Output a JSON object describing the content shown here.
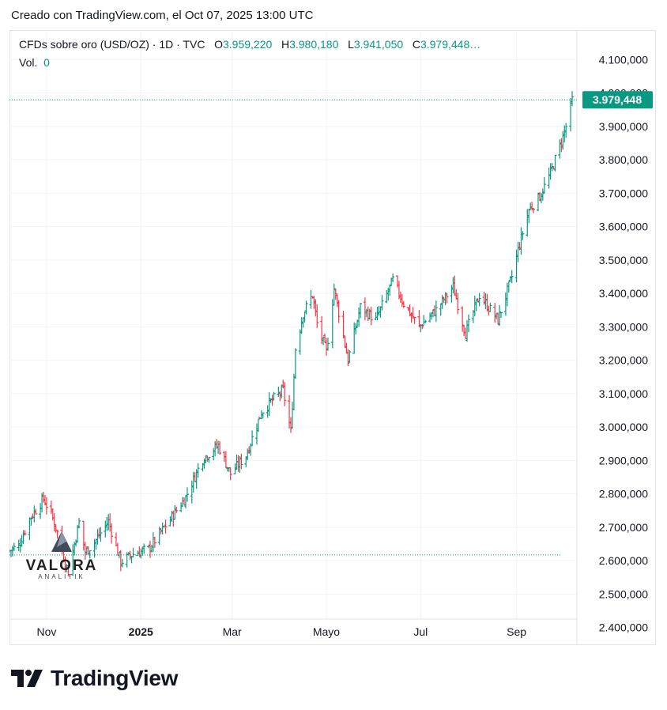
{
  "header": {
    "created_text": "Creado con TradingView.com, el Oct 07, 2025 13:00 UTC"
  },
  "legend": {
    "symbol": "CFDs sobre oro (USD/OZ) · 1D · TVC",
    "o_label": "O",
    "o_value": "3.959,220",
    "h_label": "H",
    "h_value": "3.980,180",
    "l_label": "L",
    "l_value": "3.941,050",
    "c_label": "C",
    "c_value": "3.979,448…",
    "vol_label": "Vol.",
    "vol_value": "0"
  },
  "watermark": {
    "name": "VALORA",
    "sub": "ANALITIK"
  },
  "footer": {
    "brand": "TradingView"
  },
  "colors": {
    "up": "#089981",
    "down": "#f23645",
    "grid": "#f0f3fa",
    "badge": "#089981",
    "text": "#131722"
  },
  "chart_data": {
    "type": "ohlc",
    "y_axis": {
      "min": 2400,
      "max": 4100,
      "ticks": [
        2400,
        2500,
        2600,
        2700,
        2800,
        2900,
        3000,
        3100,
        3200,
        3300,
        3400,
        3500,
        3600,
        3700,
        3800,
        3900,
        4000,
        4100
      ],
      "tick_labels": [
        "2.400,000",
        "2.500,000",
        "2.600,000",
        "2.700,000",
        "2.800,000",
        "2.900,000",
        "3.000,000",
        "3.100,000",
        "3.200,000",
        "3.300,000",
        "3.400,000",
        "3.500,000",
        "3.600,000",
        "3.700,000",
        "3.800,000",
        "3.900,000",
        "4.000,000",
        "4.100,000"
      ]
    },
    "x_axis": {
      "labels": [
        "Nov",
        "2025",
        "Mar",
        "Mayo",
        "Jul",
        "Sep"
      ],
      "label_dates": [
        "2024-11-01",
        "2025-01-01",
        "2025-03-01",
        "2025-05-01",
        "2025-07-01",
        "2025-09-01"
      ]
    },
    "last_price": 3979.448,
    "last_price_label": "3.979,448",
    "reference_line": 2617,
    "grid": true,
    "close_path": [
      [
        "2024-10-08",
        2630
      ],
      [
        "2024-10-14",
        2645
      ],
      [
        "2024-10-21",
        2725
      ],
      [
        "2024-10-30",
        2785
      ],
      [
        "2024-11-04",
        2740
      ],
      [
        "2024-11-08",
        2685
      ],
      [
        "2024-11-13",
        2595
      ],
      [
        "2024-11-15",
        2565
      ],
      [
        "2024-11-22",
        2715
      ],
      [
        "2024-11-26",
        2625
      ],
      [
        "2024-12-02",
        2655
      ],
      [
        "2024-12-11",
        2718
      ],
      [
        "2024-12-19",
        2595
      ],
      [
        "2024-12-27",
        2620
      ],
      [
        "2025-01-06",
        2635
      ],
      [
        "2025-01-17",
        2705
      ],
      [
        "2025-01-30",
        2790
      ],
      [
        "2025-02-10",
        2905
      ],
      [
        "2025-02-20",
        2945
      ],
      [
        "2025-02-28",
        2860
      ],
      [
        "2025-03-10",
        2915
      ],
      [
        "2025-03-20",
        3045
      ],
      [
        "2025-03-28",
        3085
      ],
      [
        "2025-04-03",
        3110
      ],
      [
        "2025-04-08",
        2985
      ],
      [
        "2025-04-11",
        3235
      ],
      [
        "2025-04-16",
        3340
      ],
      [
        "2025-04-22",
        3395
      ],
      [
        "2025-04-25",
        3310
      ],
      [
        "2025-05-01",
        3225
      ],
      [
        "2025-05-06",
        3415
      ],
      [
        "2025-05-15",
        3200
      ],
      [
        "2025-05-23",
        3360
      ],
      [
        "2025-06-02",
        3320
      ],
      [
        "2025-06-13",
        3440
      ],
      [
        "2025-06-20",
        3370
      ],
      [
        "2025-06-30",
        3300
      ],
      [
        "2025-07-11",
        3350
      ],
      [
        "2025-07-22",
        3420
      ],
      [
        "2025-07-30",
        3280
      ],
      [
        "2025-08-08",
        3395
      ],
      [
        "2025-08-20",
        3320
      ],
      [
        "2025-08-29",
        3450
      ],
      [
        "2025-09-02",
        3530
      ],
      [
        "2025-09-09",
        3650
      ],
      [
        "2025-09-16",
        3690
      ],
      [
        "2025-09-23",
        3760
      ],
      [
        "2025-09-30",
        3855
      ],
      [
        "2025-10-03",
        3900
      ],
      [
        "2025-10-07",
        3979
      ]
    ]
  }
}
